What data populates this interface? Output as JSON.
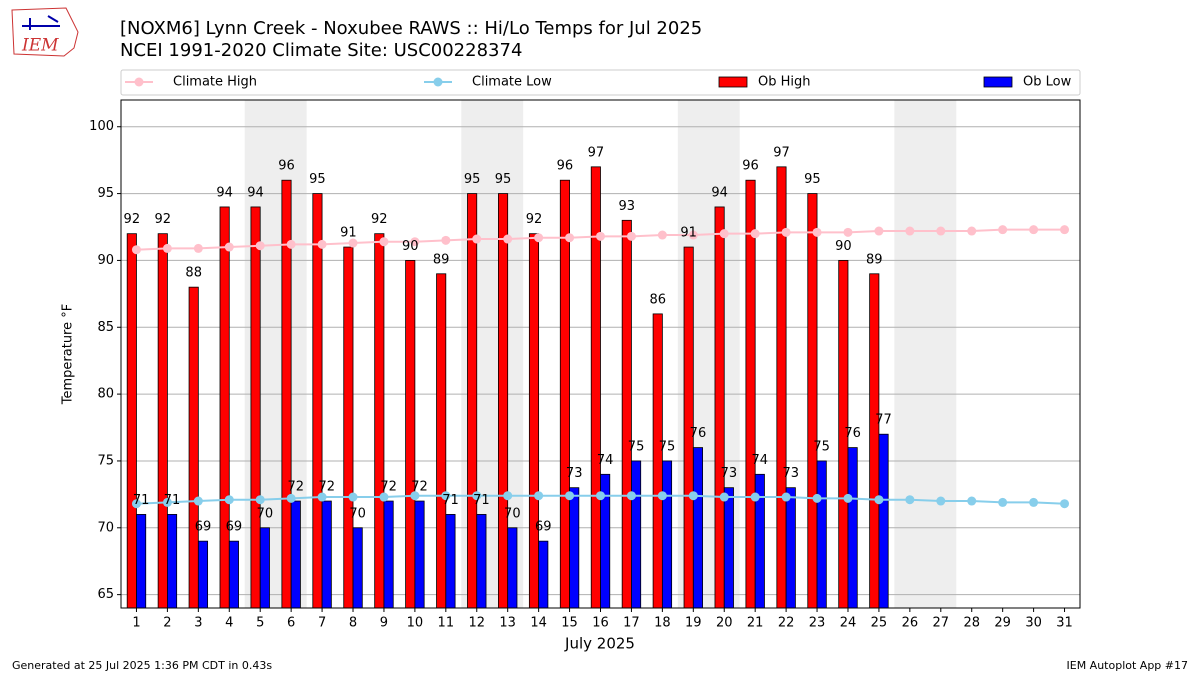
{
  "chart_data": {
    "type": "bar",
    "title": "[NOXM6] Lynn Creek - Noxubee RAWS :: Hi/Lo Temps for Jul 2025",
    "subtitle": "NCEI 1991-2020 Climate Site: USC00228374",
    "logo_text": "IEM",
    "y_label": "Temperature °F",
    "x_label": "July 2025",
    "footer_left": "Generated at 25 Jul 2025 1:36 PM CDT in 0.43s",
    "footer_right": "IEM Autoplot App #17",
    "x": [
      1,
      2,
      3,
      4,
      5,
      6,
      7,
      8,
      9,
      10,
      11,
      12,
      13,
      14,
      15,
      16,
      17,
      18,
      19,
      20,
      21,
      22,
      23,
      24,
      25,
      26,
      27,
      28,
      29,
      30,
      31
    ],
    "xlim": [
      0.5,
      31.5
    ],
    "xticks": [
      1,
      2,
      3,
      4,
      5,
      6,
      7,
      8,
      9,
      10,
      11,
      12,
      13,
      14,
      15,
      16,
      17,
      18,
      19,
      20,
      21,
      22,
      23,
      24,
      25,
      26,
      27,
      28,
      29,
      30,
      31
    ],
    "ylim": [
      64,
      102
    ],
    "yticks": [
      65,
      70,
      75,
      80,
      85,
      90,
      95,
      100
    ],
    "grid": true,
    "shaded_days": [
      [
        5,
        6
      ],
      [
        12,
        13
      ],
      [
        19,
        20
      ],
      [
        26,
        27
      ]
    ],
    "series": [
      {
        "name": "Climate High",
        "type": "line",
        "color": "#ffc0cb",
        "values": [
          90.8,
          90.9,
          90.9,
          91.0,
          91.1,
          91.2,
          91.2,
          91.3,
          91.4,
          91.4,
          91.5,
          91.6,
          91.6,
          91.7,
          91.7,
          91.8,
          91.8,
          91.9,
          91.9,
          92.0,
          92.0,
          92.1,
          92.1,
          92.1,
          92.2,
          92.2,
          92.2,
          92.2,
          92.3,
          92.3,
          92.3
        ]
      },
      {
        "name": "Climate Low",
        "type": "line",
        "color": "#87ceeb",
        "values": [
          71.8,
          71.9,
          72.0,
          72.1,
          72.1,
          72.2,
          72.3,
          72.3,
          72.3,
          72.4,
          72.4,
          72.4,
          72.4,
          72.4,
          72.4,
          72.4,
          72.4,
          72.4,
          72.4,
          72.3,
          72.3,
          72.3,
          72.2,
          72.2,
          72.1,
          72.1,
          72.0,
          72.0,
          71.9,
          71.9,
          71.8
        ]
      },
      {
        "name": "Ob High",
        "type": "bar",
        "color": "#ff0000",
        "offset": -0.3,
        "values": [
          92,
          92,
          88,
          94,
          94,
          96,
          95,
          91,
          92,
          90,
          89,
          95,
          95,
          92,
          96,
          97,
          93,
          86,
          91,
          94,
          96,
          97,
          95,
          90,
          89,
          null,
          null,
          null,
          null,
          null,
          null
        ]
      },
      {
        "name": "Ob Low",
        "type": "bar",
        "color": "#0000ff",
        "offset": 0,
        "values": [
          71,
          71,
          69,
          69,
          70,
          72,
          72,
          70,
          72,
          72,
          71,
          71,
          70,
          69,
          73,
          74,
          75,
          75,
          76,
          73,
          74,
          73,
          75,
          76,
          77,
          null,
          null,
          null,
          null,
          null,
          null
        ]
      }
    ]
  }
}
